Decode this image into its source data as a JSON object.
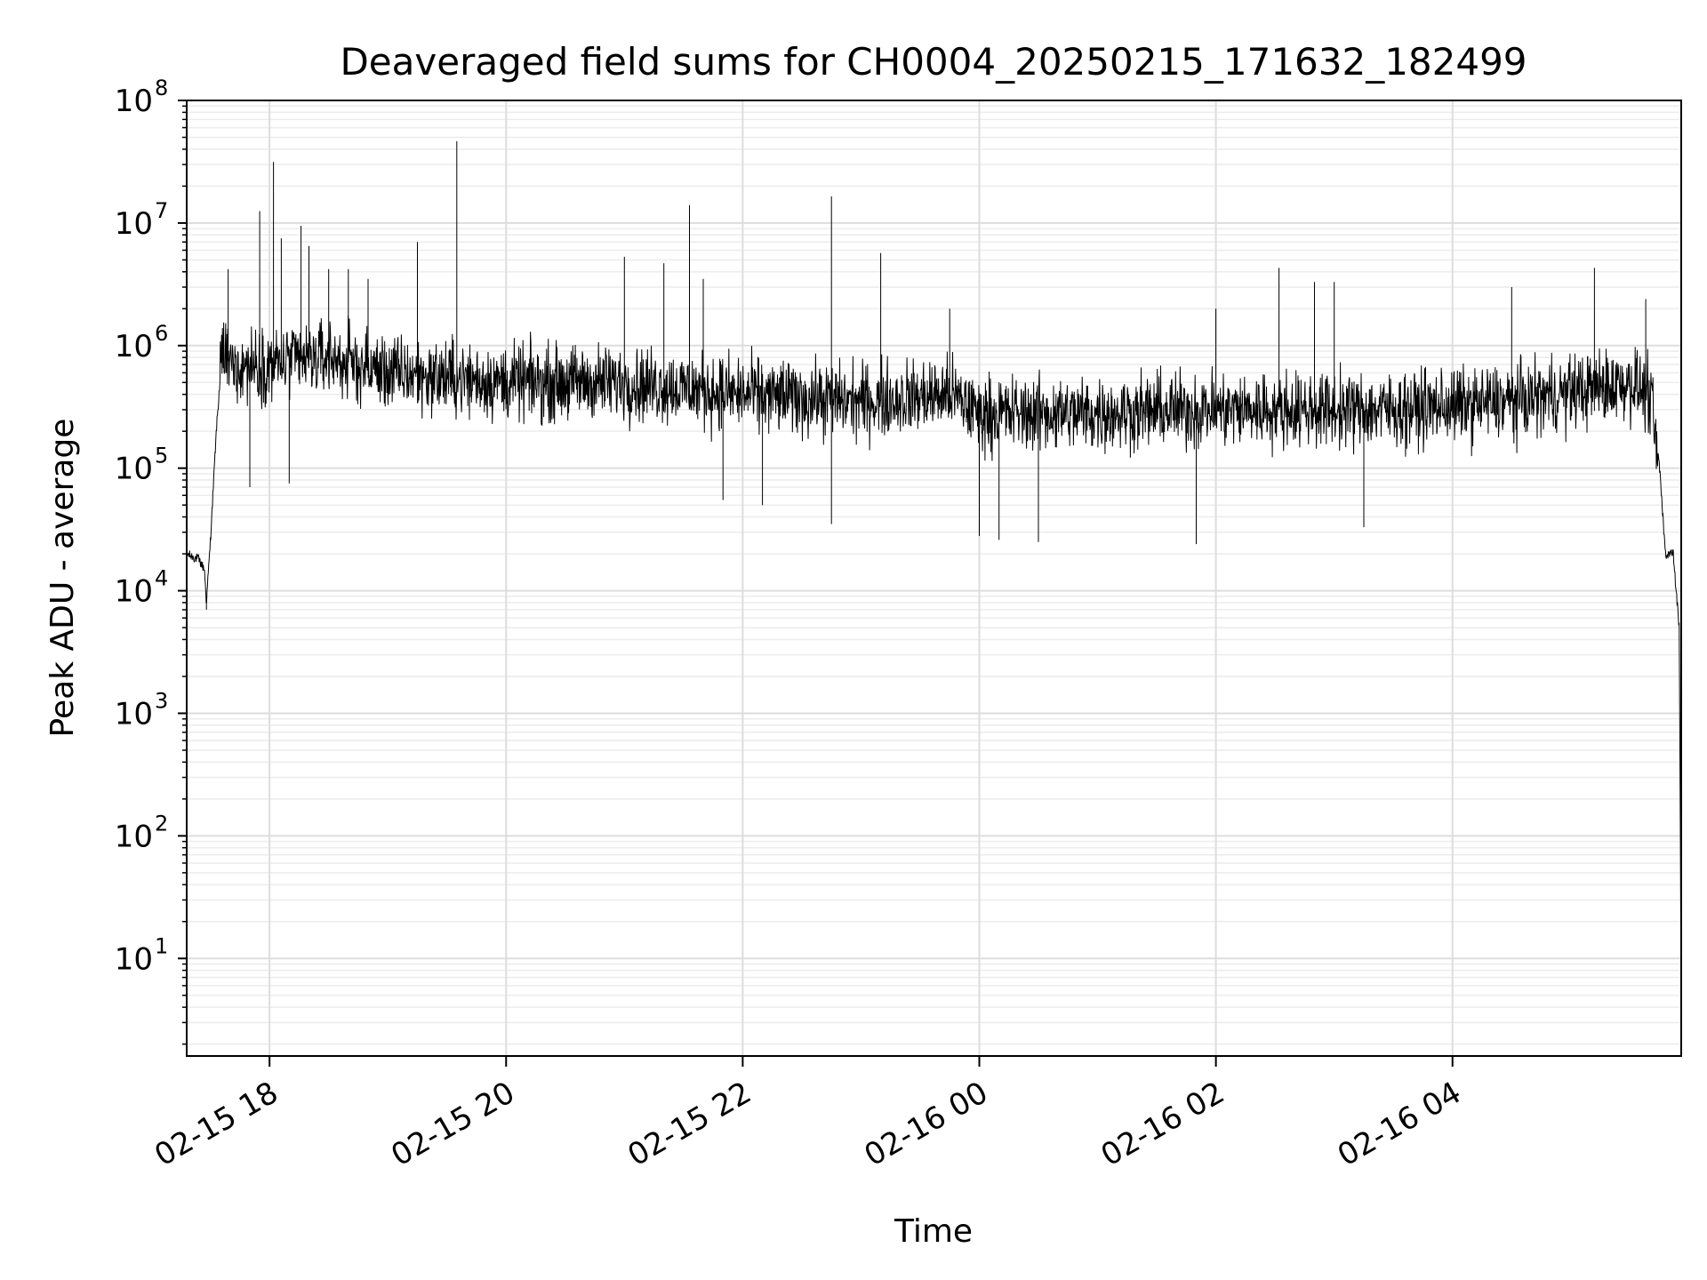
{
  "chart_data": {
    "type": "line",
    "title": "Deaveraged field sums for CH0004_20250215_171632_182499",
    "xlabel": "Time",
    "ylabel": "Peak ADU - average",
    "yscale": "log",
    "ylim": [
      1.6,
      100000000
    ],
    "xlim": [
      "2025-02-15 17:18",
      "2025-02-16 05:56"
    ],
    "grid": true,
    "x_ticks": [
      "02-15 18",
      "02-15 20",
      "02-15 22",
      "02-16 00",
      "02-16 02",
      "02-16 04"
    ],
    "y_ticks": [
      {
        "base": "10",
        "exp": "1"
      },
      {
        "base": "10",
        "exp": "2"
      },
      {
        "base": "10",
        "exp": "3"
      },
      {
        "base": "10",
        "exp": "4"
      },
      {
        "base": "10",
        "exp": "5"
      },
      {
        "base": "10",
        "exp": "6"
      },
      {
        "base": "10",
        "exp": "7"
      },
      {
        "base": "10",
        "exp": "8"
      }
    ],
    "series": [
      {
        "color": "#000000",
        "baseline_points": [
          [
            "2025-02-15 17:18",
            20000
          ],
          [
            "2025-02-15 17:24",
            18000
          ],
          [
            "2025-02-15 17:27",
            15000
          ],
          [
            "2025-02-15 17:28",
            8000
          ],
          [
            "2025-02-15 17:30",
            25000
          ],
          [
            "2025-02-15 17:33",
            200000
          ],
          [
            "2025-02-15 17:36",
            900000
          ],
          [
            "2025-02-15 17:40",
            700000
          ],
          [
            "2025-02-15 18:00",
            700000
          ],
          [
            "2025-02-15 18:30",
            800000
          ],
          [
            "2025-02-15 19:00",
            600000
          ],
          [
            "2025-02-15 20:00",
            500000
          ],
          [
            "2025-02-15 21:00",
            500000
          ],
          [
            "2025-02-15 22:00",
            400000
          ],
          [
            "2025-02-15 23:00",
            350000
          ],
          [
            "2025-02-15 23:45",
            400000
          ],
          [
            "2025-02-16 00:00",
            280000
          ],
          [
            "2025-02-16 01:00",
            280000
          ],
          [
            "2025-02-16 01:50",
            300000
          ],
          [
            "2025-02-16 02:30",
            300000
          ],
          [
            "2025-02-16 03:30",
            300000
          ],
          [
            "2025-02-16 04:30",
            350000
          ],
          [
            "2025-02-16 05:30",
            500000
          ],
          [
            "2025-02-16 05:40",
            400000
          ],
          [
            "2025-02-16 05:45",
            100000
          ],
          [
            "2025-02-16 05:48",
            20000
          ],
          [
            "2025-02-16 05:52",
            20000
          ],
          [
            "2025-02-16 05:53",
            12000
          ],
          [
            "2025-02-16 05:55",
            5000
          ],
          [
            "2025-02-16 05:56",
            4
          ]
        ],
        "noise_spread_decades": 0.45,
        "spikes": [
          [
            "2025-02-15 17:39",
            4200000
          ],
          [
            "2025-02-15 17:55",
            12500000
          ],
          [
            "2025-02-15 18:02",
            31500000
          ],
          [
            "2025-02-15 18:06",
            7500000
          ],
          [
            "2025-02-15 18:16",
            9500000
          ],
          [
            "2025-02-15 18:20",
            6500000
          ],
          [
            "2025-02-15 18:30",
            4200000
          ],
          [
            "2025-02-15 18:40",
            4200000
          ],
          [
            "2025-02-15 18:50",
            3500000
          ],
          [
            "2025-02-15 19:15",
            7000000
          ],
          [
            "2025-02-15 19:35",
            46500000
          ],
          [
            "2025-02-15 21:00",
            5300000
          ],
          [
            "2025-02-15 21:20",
            4700000
          ],
          [
            "2025-02-15 21:33",
            14000000
          ],
          [
            "2025-02-15 21:40",
            3500000
          ],
          [
            "2025-02-15 22:45",
            16500000
          ],
          [
            "2025-02-15 23:10",
            5700000
          ],
          [
            "2025-02-15 23:45",
            2000000
          ],
          [
            "2025-02-16 02:00",
            2000000
          ],
          [
            "2025-02-16 02:32",
            4300000
          ],
          [
            "2025-02-16 02:50",
            3300000
          ],
          [
            "2025-02-16 03:00",
            3300000
          ],
          [
            "2025-02-16 04:30",
            3000000
          ],
          [
            "2025-02-16 05:12",
            4300000
          ],
          [
            "2025-02-16 05:38",
            2400000
          ]
        ],
        "dips": [
          [
            "2025-02-15 17:28",
            7000
          ],
          [
            "2025-02-15 17:50",
            70000
          ],
          [
            "2025-02-15 18:10",
            75000
          ],
          [
            "2025-02-15 21:50",
            55000
          ],
          [
            "2025-02-15 22:10",
            50000
          ],
          [
            "2025-02-15 22:45",
            35000
          ],
          [
            "2025-02-16 00:00",
            28000
          ],
          [
            "2025-02-16 00:10",
            26000
          ],
          [
            "2025-02-16 00:30",
            25000
          ],
          [
            "2025-02-16 01:50",
            24000
          ],
          [
            "2025-02-16 03:15",
            33000
          ],
          [
            "2025-02-16 05:53",
            12000
          ]
        ]
      }
    ]
  }
}
